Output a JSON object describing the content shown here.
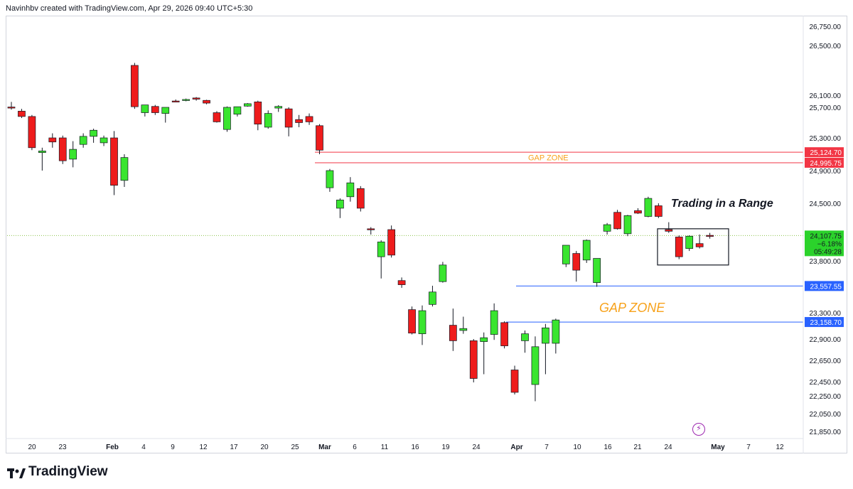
{
  "header": {
    "caption": "Navinhbv created with TradingView.com, Apr 29, 2026 09:40 UTC+5:30"
  },
  "footer": {
    "brand": "TradingView"
  },
  "colors": {
    "up": "#39e52f",
    "down": "#ee1c1c",
    "gap_red": "#f23645",
    "gap_blue": "#2962ff",
    "annotation_orange": "#f7a21b"
  },
  "chart_data": {
    "type": "candlestick",
    "price_axis_ticks": [
      26750,
      26500,
      26100,
      25700,
      25300,
      24900,
      24500,
      23800,
      23300,
      22900,
      22650,
      22450,
      22250,
      22050,
      21850
    ],
    "price_axis_tick_labels": [
      "26,750.00",
      "26,500.00",
      "26,100.00",
      "25,700.00",
      "25,300.00",
      "24,900.00",
      "24,500.00",
      "23,800.00",
      "23,300.00",
      "22,900.00",
      "22,650.00",
      "22,450.00",
      "22,250.00",
      "22,050.00",
      "21,850.00"
    ],
    "time_axis_labels": [
      "20",
      "23",
      "Feb",
      "4",
      "9",
      "12",
      "17",
      "20",
      "25",
      "Mar",
      "6",
      "11",
      "16",
      "19",
      "24",
      "Apr",
      "7",
      "10",
      "16",
      "21",
      "24",
      "May",
      "7",
      "12"
    ],
    "time_axis_bold": [
      "Feb",
      "Mar",
      "Apr",
      "May"
    ],
    "candles": [
      {
        "o": 25710,
        "h": 25880,
        "l": 25670,
        "c": 25700
      },
      {
        "o": 25650,
        "h": 25680,
        "l": 25560,
        "c": 25580
      },
      {
        "o": 25580,
        "h": 25600,
        "l": 25150,
        "c": 25180
      },
      {
        "o": 25120,
        "h": 25180,
        "l": 24900,
        "c": 25140
      },
      {
        "o": 25300,
        "h": 25360,
        "l": 25180,
        "c": 25250
      },
      {
        "o": 25300,
        "h": 25330,
        "l": 24980,
        "c": 25020
      },
      {
        "o": 25040,
        "h": 25260,
        "l": 24940,
        "c": 25160
      },
      {
        "o": 25220,
        "h": 25360,
        "l": 25180,
        "c": 25320
      },
      {
        "o": 25320,
        "h": 25420,
        "l": 25240,
        "c": 25400
      },
      {
        "o": 25240,
        "h": 25330,
        "l": 25200,
        "c": 25300
      },
      {
        "o": 25300,
        "h": 25390,
        "l": 24600,
        "c": 24720
      },
      {
        "o": 24780,
        "h": 25100,
        "l": 24700,
        "c": 25060
      },
      {
        "o": 26340,
        "h": 26360,
        "l": 25680,
        "c": 25720
      },
      {
        "o": 25630,
        "h": 25780,
        "l": 25580,
        "c": 25780
      },
      {
        "o": 25730,
        "h": 25780,
        "l": 25600,
        "c": 25630
      },
      {
        "o": 25620,
        "h": 25700,
        "l": 25500,
        "c": 25700
      },
      {
        "o": 25910,
        "h": 25960,
        "l": 25880,
        "c": 25890
      },
      {
        "o": 25940,
        "h": 25990,
        "l": 25900,
        "c": 25960
      },
      {
        "o": 26010,
        "h": 26040,
        "l": 25920,
        "c": 25970
      },
      {
        "o": 25930,
        "h": 25950,
        "l": 25800,
        "c": 25840
      },
      {
        "o": 25630,
        "h": 25650,
        "l": 25500,
        "c": 25510
      },
      {
        "o": 25410,
        "h": 25730,
        "l": 25380,
        "c": 25700
      },
      {
        "o": 25610,
        "h": 25720,
        "l": 25580,
        "c": 25720
      },
      {
        "o": 25740,
        "h": 25840,
        "l": 25720,
        "c": 25820
      },
      {
        "o": 25880,
        "h": 25920,
        "l": 25400,
        "c": 25480
      },
      {
        "o": 25440,
        "h": 25660,
        "l": 25420,
        "c": 25620
      },
      {
        "o": 25690,
        "h": 25770,
        "l": 25640,
        "c": 25730
      },
      {
        "o": 25680,
        "h": 25700,
        "l": 25320,
        "c": 25440
      },
      {
        "o": 25540,
        "h": 25600,
        "l": 25440,
        "c": 25500
      },
      {
        "o": 25580,
        "h": 25620,
        "l": 25470,
        "c": 25510
      },
      {
        "o": 25460,
        "h": 25480,
        "l": 25100,
        "c": 25150
      },
      {
        "o": 24690,
        "h": 24920,
        "l": 24640,
        "c": 24900
      },
      {
        "o": 24440,
        "h": 24560,
        "l": 24320,
        "c": 24540
      },
      {
        "o": 24580,
        "h": 24820,
        "l": 24520,
        "c": 24750
      },
      {
        "o": 24680,
        "h": 24710,
        "l": 24400,
        "c": 24440
      },
      {
        "o": 24190,
        "h": 24210,
        "l": 24120,
        "c": 24180
      },
      {
        "o": 23850,
        "h": 24050,
        "l": 23630,
        "c": 24030
      },
      {
        "o": 24180,
        "h": 24230,
        "l": 23840,
        "c": 23870
      },
      {
        "o": 23610,
        "h": 23640,
        "l": 23540,
        "c": 23570
      },
      {
        "o": 23330,
        "h": 23360,
        "l": 22970,
        "c": 22990
      },
      {
        "o": 22980,
        "h": 23370,
        "l": 22830,
        "c": 23320
      },
      {
        "o": 23380,
        "h": 23560,
        "l": 23360,
        "c": 23500
      },
      {
        "o": 23600,
        "h": 23790,
        "l": 23590,
        "c": 23760
      },
      {
        "o": 23110,
        "h": 23340,
        "l": 22760,
        "c": 22880
      },
      {
        "o": 23030,
        "h": 23240,
        "l": 22980,
        "c": 23060
      },
      {
        "o": 22880,
        "h": 22900,
        "l": 22440,
        "c": 22480
      },
      {
        "o": 22870,
        "h": 23000,
        "l": 22520,
        "c": 22920
      },
      {
        "o": 22970,
        "h": 23390,
        "l": 22890,
        "c": 23320
      },
      {
        "o": 23150,
        "h": 23170,
        "l": 22790,
        "c": 22820
      },
      {
        "o": 22560,
        "h": 22600,
        "l": 22270,
        "c": 22300
      },
      {
        "o": 22880,
        "h": 23030,
        "l": 22740,
        "c": 22980
      },
      {
        "o": 22410,
        "h": 22940,
        "l": 22190,
        "c": 22810
      },
      {
        "o": 22850,
        "h": 23130,
        "l": 22520,
        "c": 23070
      },
      {
        "o": 22850,
        "h": 23210,
        "l": 22730,
        "c": 23190
      },
      {
        "o": 23770,
        "h": 23980,
        "l": 23740,
        "c": 23990
      },
      {
        "o": 23890,
        "h": 23920,
        "l": 23600,
        "c": 23710
      },
      {
        "o": 23810,
        "h": 24060,
        "l": 23780,
        "c": 24050
      },
      {
        "o": 23590,
        "h": 23830,
        "l": 23550,
        "c": 23830
      },
      {
        "o": 24160,
        "h": 24260,
        "l": 24120,
        "c": 24240
      },
      {
        "o": 24390,
        "h": 24420,
        "l": 24180,
        "c": 24190
      },
      {
        "o": 24130,
        "h": 24360,
        "l": 24100,
        "c": 24350
      },
      {
        "o": 24410,
        "h": 24440,
        "l": 24370,
        "c": 24380
      },
      {
        "o": 24340,
        "h": 24580,
        "l": 24330,
        "c": 24560
      },
      {
        "o": 24470,
        "h": 24500,
        "l": 24320,
        "c": 24340
      },
      {
        "o": 24180,
        "h": 24270,
        "l": 24140,
        "c": 24160
      },
      {
        "o": 24090,
        "h": 24110,
        "l": 23820,
        "c": 23850
      },
      {
        "o": 23950,
        "h": 24110,
        "l": 23920,
        "c": 24100
      },
      {
        "o": 24010,
        "h": 24120,
        "l": 23950,
        "c": 23970
      },
      {
        "o": 24110,
        "h": 24140,
        "l": 24070,
        "c": 24100
      }
    ],
    "horizontal_lines": [
      {
        "price": 25124.7,
        "label": "25,124.70",
        "color": "#f23645"
      },
      {
        "price": 24995.75,
        "label": "24,995.75",
        "color": "#f23645"
      },
      {
        "price": 23557.55,
        "label": "23,557.55",
        "color": "#2962ff"
      },
      {
        "price": 23158.7,
        "label": "23,158.70",
        "color": "#2962ff"
      }
    ],
    "last_price": {
      "price": 24107.75,
      "label": "24,107.75",
      "change": "−6.18%",
      "countdown": "05:49:28"
    },
    "annotations": [
      {
        "text": "GAP ZONE",
        "price": 25060,
        "style": "small"
      },
      {
        "text": "GAP ZONE",
        "price": 23360,
        "style": "large"
      },
      {
        "text": "Trading in a Range",
        "price": 24510,
        "style": "italic"
      }
    ],
    "range_box": {
      "price_top": 24190,
      "price_bottom": 23760
    }
  }
}
